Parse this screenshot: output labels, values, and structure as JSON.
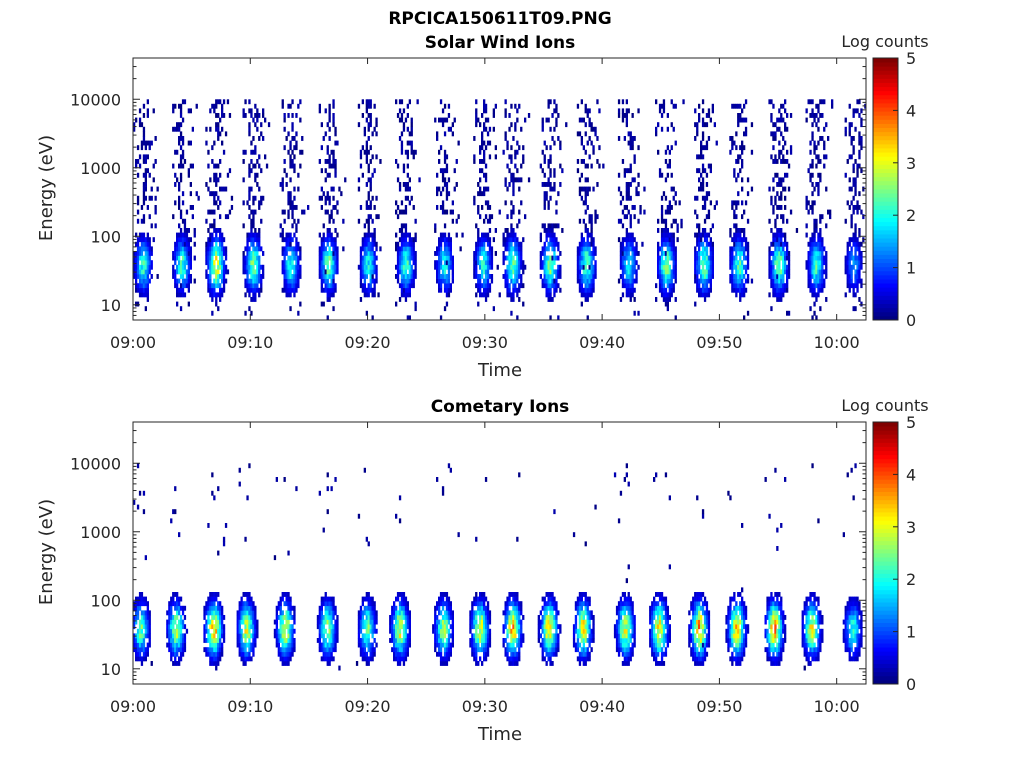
{
  "page": {
    "title": "RPCICA150611T09.PNG"
  },
  "chart_data": [
    {
      "type": "heatmap",
      "title": "Solar Wind Ions",
      "xlabel": "Time",
      "ylabel": "Energy (eV)",
      "x_ticks": [
        "09:00",
        "09:10",
        "09:20",
        "09:30",
        "09:40",
        "09:50",
        "10:00"
      ],
      "x_range_minutes": [
        0,
        62.5
      ],
      "y_ticks": [
        "10",
        "100",
        "1000",
        "10000"
      ],
      "y_scale": "log",
      "y_range": [
        6,
        40000
      ],
      "colorbar": {
        "label": "Log counts",
        "ticks": [
          "0",
          "1",
          "2",
          "3",
          "4",
          "5"
        ],
        "range": [
          0,
          5
        ],
        "colormap": "jet"
      },
      "bursts": [
        {
          "t": 0.8,
          "peak": 2.3
        },
        {
          "t": 4.1,
          "peak": 2.4
        },
        {
          "t": 7.0,
          "peak": 3.4
        },
        {
          "t": 10.2,
          "peak": 2.7
        },
        {
          "t": 13.4,
          "peak": 2.3
        },
        {
          "t": 16.6,
          "peak": 2.6
        },
        {
          "t": 20.0,
          "peak": 2.1
        },
        {
          "t": 23.2,
          "peak": 2.4
        },
        {
          "t": 26.5,
          "peak": 2.1
        },
        {
          "t": 29.8,
          "peak": 2.2
        },
        {
          "t": 32.3,
          "peak": 2.6
        },
        {
          "t": 35.5,
          "peak": 2.8
        },
        {
          "t": 38.6,
          "peak": 2.6
        },
        {
          "t": 42.2,
          "peak": 2.0
        },
        {
          "t": 45.4,
          "peak": 2.8
        },
        {
          "t": 48.6,
          "peak": 2.7
        },
        {
          "t": 51.6,
          "peak": 2.5
        },
        {
          "t": 55.0,
          "peak": 2.8
        },
        {
          "t": 58.2,
          "peak": 2.4
        },
        {
          "t": 61.4,
          "peak": 1.5
        }
      ]
    },
    {
      "type": "heatmap",
      "title": "Cometary Ions",
      "xlabel": "Time",
      "ylabel": "Energy (eV)",
      "x_ticks": [
        "09:00",
        "09:10",
        "09:20",
        "09:30",
        "09:40",
        "09:50",
        "10:00"
      ],
      "x_range_minutes": [
        0,
        62.5
      ],
      "y_ticks": [
        "10",
        "100",
        "1000",
        "10000"
      ],
      "y_scale": "log",
      "y_range": [
        6,
        40000
      ],
      "colorbar": {
        "label": "Log counts",
        "ticks": [
          "0",
          "1",
          "2",
          "3",
          "4",
          "5"
        ],
        "range": [
          0,
          5
        ],
        "colormap": "jet"
      },
      "bursts": [
        {
          "t": 0.6,
          "peak": 2.6
        },
        {
          "t": 3.6,
          "peak": 3.0
        },
        {
          "t": 6.8,
          "peak": 3.8
        },
        {
          "t": 9.6,
          "peak": 3.2
        },
        {
          "t": 12.9,
          "peak": 3.3
        },
        {
          "t": 16.5,
          "peak": 2.9
        },
        {
          "t": 19.9,
          "peak": 2.6
        },
        {
          "t": 22.7,
          "peak": 3.3
        },
        {
          "t": 26.4,
          "peak": 3.0
        },
        {
          "t": 29.5,
          "peak": 3.4
        },
        {
          "t": 32.3,
          "peak": 3.8
        },
        {
          "t": 35.4,
          "peak": 3.6
        },
        {
          "t": 38.3,
          "peak": 3.5
        },
        {
          "t": 41.9,
          "peak": 3.3
        },
        {
          "t": 44.8,
          "peak": 3.6
        },
        {
          "t": 48.2,
          "peak": 3.9
        },
        {
          "t": 51.4,
          "peak": 3.7
        },
        {
          "t": 54.6,
          "peak": 3.9
        },
        {
          "t": 57.8,
          "peak": 3.3
        },
        {
          "t": 61.3,
          "peak": 2.2
        }
      ]
    }
  ]
}
